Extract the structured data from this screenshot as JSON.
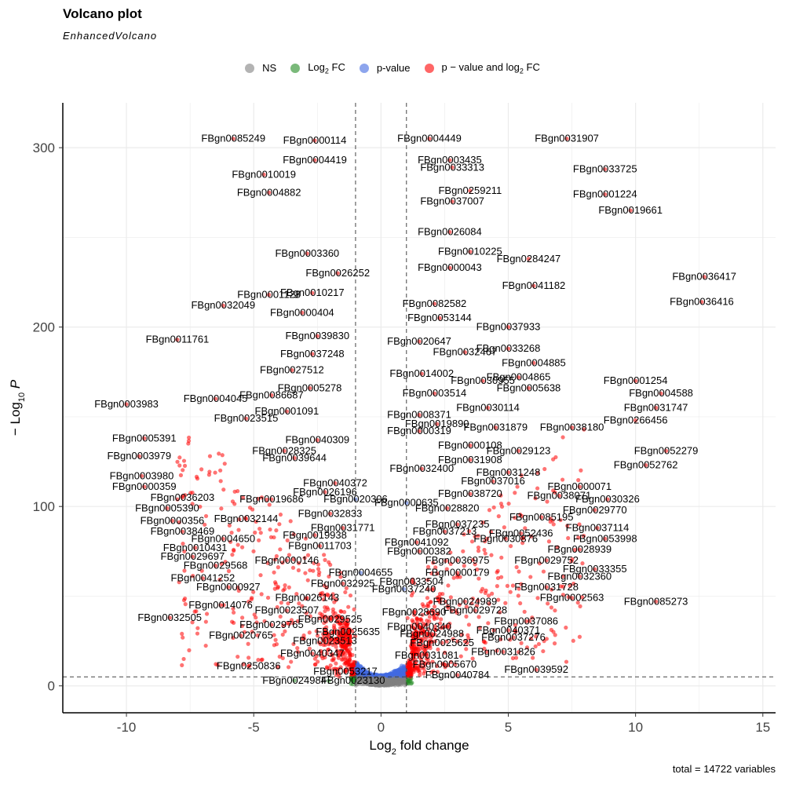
{
  "chart_data": {
    "type": "scatter",
    "title": "Volcano plot",
    "subtitle": "EnhancedVolcano",
    "xlabel": "Log2 fold change",
    "ylabel": "−Log10 P",
    "caption": "total = 14722 variables",
    "xlim": [
      -12.5,
      15.5
    ],
    "ylim": [
      -15,
      325
    ],
    "xticks": [
      -10,
      -5,
      0,
      5,
      10,
      15
    ],
    "yticks": [
      0,
      100,
      200,
      300
    ],
    "fc_cutoff": 1,
    "p_cutoff_log10": 5,
    "grid": true,
    "legend_position": "top",
    "legend": [
      {
        "name": "NS",
        "color": "#808080"
      },
      {
        "name": "Log2 FC",
        "color": "#228B22"
      },
      {
        "name": "p-value",
        "color": "#4169E1"
      },
      {
        "name": "p − value and log2 FC",
        "color": "#FF0000"
      }
    ],
    "labeled_points": [
      {
        "name": "FBgn0085249",
        "x": -5.8,
        "y": 305
      },
      {
        "name": "FBgn0000114",
        "x": -2.6,
        "y": 304
      },
      {
        "name": "FBgn0004419",
        "x": -2.6,
        "y": 293
      },
      {
        "name": "FBgn0010019",
        "x": -4.6,
        "y": 285
      },
      {
        "name": "FBgn0004882",
        "x": -4.4,
        "y": 275
      },
      {
        "name": "FBgn0004449",
        "x": 1.9,
        "y": 305
      },
      {
        "name": "FBgn0031907",
        "x": 7.3,
        "y": 305
      },
      {
        "name": "FBgn0003435",
        "x": 2.7,
        "y": 293
      },
      {
        "name": "FBgn0033313",
        "x": 2.8,
        "y": 289
      },
      {
        "name": "FBgn0033725",
        "x": 8.8,
        "y": 288
      },
      {
        "name": "FBgn0259211",
        "x": 3.5,
        "y": 276
      },
      {
        "name": "FBgn0037007",
        "x": 2.8,
        "y": 270
      },
      {
        "name": "FBgn0001224",
        "x": 8.8,
        "y": 274
      },
      {
        "name": "FBgn0019661",
        "x": 9.8,
        "y": 265
      },
      {
        "name": "FBgn0026084",
        "x": 2.7,
        "y": 253
      },
      {
        "name": "FBgn0284247",
        "x": 5.8,
        "y": 238
      },
      {
        "name": "FBgn0010225",
        "x": 3.5,
        "y": 242
      },
      {
        "name": "FBgn0003360",
        "x": -2.9,
        "y": 241
      },
      {
        "name": "FBgn0000043",
        "x": 2.7,
        "y": 233
      },
      {
        "name": "FBgn0026252",
        "x": -1.7,
        "y": 230
      },
      {
        "name": "FBgn0041182",
        "x": 6.0,
        "y": 223
      },
      {
        "name": "FBgn0010217",
        "x": -2.7,
        "y": 219
      },
      {
        "name": "FBgn0036417",
        "x": 12.7,
        "y": 228
      },
      {
        "name": "FBgn0001128",
        "x": -4.4,
        "y": 218
      },
      {
        "name": "FBgn0082582",
        "x": 2.1,
        "y": 213
      },
      {
        "name": "FBgn0036416",
        "x": 12.6,
        "y": 214
      },
      {
        "name": "FBgn0032049",
        "x": -6.2,
        "y": 212
      },
      {
        "name": "FBgn0053144",
        "x": 2.3,
        "y": 205
      },
      {
        "name": "FBgn0000404",
        "x": -3.1,
        "y": 208
      },
      {
        "name": "FBgn0037933",
        "x": 5.0,
        "y": 200
      },
      {
        "name": "FBgn0039830",
        "x": -2.5,
        "y": 195
      },
      {
        "name": "FBgn0020647",
        "x": 1.5,
        "y": 192
      },
      {
        "name": "FBgn0033268",
        "x": 5.0,
        "y": 188
      },
      {
        "name": "FBgn0011761",
        "x": -8.0,
        "y": 193
      },
      {
        "name": "FBgn0032467",
        "x": 3.3,
        "y": 186
      },
      {
        "name": "FBgn0037248",
        "x": -2.7,
        "y": 185
      },
      {
        "name": "FBgn0004885",
        "x": 6.0,
        "y": 180
      },
      {
        "name": "FBgn0014002",
        "x": 1.6,
        "y": 174
      },
      {
        "name": "FBgn0004865",
        "x": 5.4,
        "y": 172
      },
      {
        "name": "FBgn0027512",
        "x": -3.5,
        "y": 176
      },
      {
        "name": "FBgn0030955",
        "x": 4.0,
        "y": 170
      },
      {
        "name": "FBgn0005278",
        "x": -2.8,
        "y": 166
      },
      {
        "name": "FBgn0005638",
        "x": 5.8,
        "y": 166
      },
      {
        "name": "FBgn0001254",
        "x": 10.0,
        "y": 170
      },
      {
        "name": "FBgn0003514",
        "x": 2.1,
        "y": 163
      },
      {
        "name": "FBgn0004045",
        "x": -6.5,
        "y": 160
      },
      {
        "name": "FBgn0086687",
        "x": -4.3,
        "y": 162
      },
      {
        "name": "FBgn0004588",
        "x": 11.0,
        "y": 163
      },
      {
        "name": "FBgn0030114",
        "x": 4.2,
        "y": 155
      },
      {
        "name": "FBgn0003983",
        "x": -10.0,
        "y": 157
      },
      {
        "name": "FBgn0001091",
        "x": -3.7,
        "y": 153
      },
      {
        "name": "FBgn0031747",
        "x": 10.8,
        "y": 155
      },
      {
        "name": "FBgn0008371",
        "x": 1.5,
        "y": 151
      },
      {
        "name": "FBgn0023515",
        "x": -5.3,
        "y": 149
      },
      {
        "name": "FBgn0019890",
        "x": 2.2,
        "y": 146
      },
      {
        "name": "FBgn0266456",
        "x": 10.0,
        "y": 148
      },
      {
        "name": "FBgn0000319",
        "x": 1.5,
        "y": 142
      },
      {
        "name": "FBgn0031879",
        "x": 4.5,
        "y": 144
      },
      {
        "name": "FBgn0038180",
        "x": 7.5,
        "y": 144
      },
      {
        "name": "FBgn0040309",
        "x": -2.5,
        "y": 137
      },
      {
        "name": "FBgn0005391",
        "x": -9.3,
        "y": 138
      },
      {
        "name": "FBgn0000108",
        "x": 3.5,
        "y": 134
      },
      {
        "name": "FBgn0029123",
        "x": 5.4,
        "y": 131
      },
      {
        "name": "FBgn0028325",
        "x": -3.8,
        "y": 131
      },
      {
        "name": "FBgn0052279",
        "x": 11.2,
        "y": 131
      },
      {
        "name": "FBgn0039644",
        "x": -3.4,
        "y": 127
      },
      {
        "name": "FBgn0031908",
        "x": 3.5,
        "y": 126
      },
      {
        "name": "FBgn0003979",
        "x": -9.5,
        "y": 128
      },
      {
        "name": "FBgn0032400",
        "x": 1.6,
        "y": 121
      },
      {
        "name": "FBgn0052762",
        "x": 10.4,
        "y": 123
      },
      {
        "name": "FBgn0031248",
        "x": 5.0,
        "y": 119
      },
      {
        "name": "FBgn0037016",
        "x": 4.4,
        "y": 114
      },
      {
        "name": "FBgn0003980",
        "x": -9.4,
        "y": 117
      },
      {
        "name": "FBgn0040372",
        "x": -1.8,
        "y": 113
      },
      {
        "name": "FBgn0000071",
        "x": 7.8,
        "y": 111
      },
      {
        "name": "FBgn0000359",
        "x": -9.3,
        "y": 111
      },
      {
        "name": "FBgn0038720",
        "x": 3.5,
        "y": 107
      },
      {
        "name": "FBgn0026196",
        "x": -2.2,
        "y": 108
      },
      {
        "name": "FBgn0038071",
        "x": 7.0,
        "y": 106
      },
      {
        "name": "FBgn0036203",
        "x": -7.8,
        "y": 105
      },
      {
        "name": "FBgn0030326",
        "x": 8.9,
        "y": 104
      },
      {
        "name": "FBgn0019686",
        "x": -4.3,
        "y": 104
      },
      {
        "name": "FBgn0020306",
        "x": -1.0,
        "y": 104
      },
      {
        "name": "FBgn0000635",
        "x": 1.0,
        "y": 102
      },
      {
        "name": "FBgn0028820",
        "x": 2.6,
        "y": 99
      },
      {
        "name": "FBgn0005390",
        "x": -8.4,
        "y": 99
      },
      {
        "name": "FBgn0029770",
        "x": 8.4,
        "y": 98
      },
      {
        "name": "FBgn0032833",
        "x": -2.0,
        "y": 96
      },
      {
        "name": "FBgn0085195",
        "x": 6.3,
        "y": 94
      },
      {
        "name": "FBgn0000356",
        "x": -8.2,
        "y": 92
      },
      {
        "name": "FBgn0032144",
        "x": -5.3,
        "y": 93
      },
      {
        "name": "FBgn0037235",
        "x": 3.0,
        "y": 90
      },
      {
        "name": "FBgn0031771",
        "x": -1.5,
        "y": 88
      },
      {
        "name": "FBgn0037114",
        "x": 8.5,
        "y": 88
      },
      {
        "name": "FBgn0038469",
        "x": -7.8,
        "y": 86
      },
      {
        "name": "FBgn0037213",
        "x": 2.5,
        "y": 86
      },
      {
        "name": "FBgn0052436",
        "x": 5.5,
        "y": 85
      },
      {
        "name": "FBgn0019938",
        "x": -2.6,
        "y": 84
      },
      {
        "name": "FBgn0004650",
        "x": -6.2,
        "y": 82
      },
      {
        "name": "FBgn0030876",
        "x": 4.9,
        "y": 82
      },
      {
        "name": "FBgn0053998",
        "x": 8.8,
        "y": 82
      },
      {
        "name": "FBgn0041092",
        "x": 1.4,
        "y": 80
      },
      {
        "name": "FBgn0011703",
        "x": -2.4,
        "y": 78
      },
      {
        "name": "FBgn0010431",
        "x": -7.3,
        "y": 77
      },
      {
        "name": "FBgn0028939",
        "x": 7.8,
        "y": 76
      },
      {
        "name": "FBgn0000382",
        "x": 1.5,
        "y": 75
      },
      {
        "name": "FBgn0029697",
        "x": -7.4,
        "y": 72
      },
      {
        "name": "FBgn0000146",
        "x": -3.7,
        "y": 70
      },
      {
        "name": "FBgn0036975",
        "x": 3.0,
        "y": 70
      },
      {
        "name": "FBgn0029752",
        "x": 6.5,
        "y": 70
      },
      {
        "name": "FBgn0029568",
        "x": -6.5,
        "y": 67
      },
      {
        "name": "FBgn0033355",
        "x": 8.4,
        "y": 65
      },
      {
        "name": "FBgn0004655",
        "x": -0.8,
        "y": 63
      },
      {
        "name": "FBgn0000179",
        "x": 3.0,
        "y": 63
      },
      {
        "name": "FBgn0041252",
        "x": -7.0,
        "y": 60
      },
      {
        "name": "FBgn0032360",
        "x": 7.8,
        "y": 61
      },
      {
        "name": "FBgn0033504",
        "x": 1.2,
        "y": 58
      },
      {
        "name": "FBgn0032925",
        "x": -1.5,
        "y": 57
      },
      {
        "name": "FBgn0037240",
        "x": 0.9,
        "y": 54
      },
      {
        "name": "FBgn0000927",
        "x": -6.0,
        "y": 55
      },
      {
        "name": "FBgn0031728",
        "x": 6.5,
        "y": 55
      },
      {
        "name": "FBgn0026143",
        "x": -2.9,
        "y": 49
      },
      {
        "name": "FBgn0024989",
        "x": 3.3,
        "y": 47
      },
      {
        "name": "FBgn0002563",
        "x": 7.5,
        "y": 49
      },
      {
        "name": "FBgn0014076",
        "x": -6.3,
        "y": 45
      },
      {
        "name": "FBgn0085273",
        "x": 10.8,
        "y": 47
      },
      {
        "name": "FBgn0023507",
        "x": -3.7,
        "y": 42
      },
      {
        "name": "FBgn0029728",
        "x": 3.7,
        "y": 42
      },
      {
        "name": "FBgn0028690",
        "x": 1.3,
        "y": 41
      },
      {
        "name": "FBgn0032505",
        "x": -8.3,
        "y": 38
      },
      {
        "name": "FBgn0029525",
        "x": -2.0,
        "y": 37
      },
      {
        "name": "FBgn0037086",
        "x": 5.7,
        "y": 36
      },
      {
        "name": "FBgn0029765",
        "x": -4.3,
        "y": 34
      },
      {
        "name": "FBgn0040340",
        "x": 1.5,
        "y": 33
      },
      {
        "name": "FBgn0040371",
        "x": 5.0,
        "y": 31
      },
      {
        "name": "FBgn0025635",
        "x": -1.3,
        "y": 30
      },
      {
        "name": "FBgn0024988",
        "x": 2.0,
        "y": 29
      },
      {
        "name": "FBgn0020765",
        "x": -5.5,
        "y": 28
      },
      {
        "name": "FBgn0037276",
        "x": 5.2,
        "y": 27
      },
      {
        "name": "FBgn0023513",
        "x": -2.2,
        "y": 25
      },
      {
        "name": "FBgn0025625",
        "x": 2.4,
        "y": 24
      },
      {
        "name": "FBgn0031826",
        "x": 4.8,
        "y": 19
      },
      {
        "name": "FBgn0040347",
        "x": -2.7,
        "y": 18
      },
      {
        "name": "FBgn0031081",
        "x": 1.8,
        "y": 17
      },
      {
        "name": "FBgn0250836",
        "x": -5.2,
        "y": 11
      },
      {
        "name": "FBgn0005670",
        "x": 2.5,
        "y": 12
      },
      {
        "name": "FBgn0039592",
        "x": 6.1,
        "y": 9
      },
      {
        "name": "FBgn0053217",
        "x": -1.4,
        "y": 8
      },
      {
        "name": "FBgn0040784",
        "x": 3.0,
        "y": 6
      },
      {
        "name": "FBgn0024984",
        "x": -3.4,
        "y": 3
      },
      {
        "name": "FBgn0023130",
        "x": -1.1,
        "y": 3
      }
    ]
  }
}
